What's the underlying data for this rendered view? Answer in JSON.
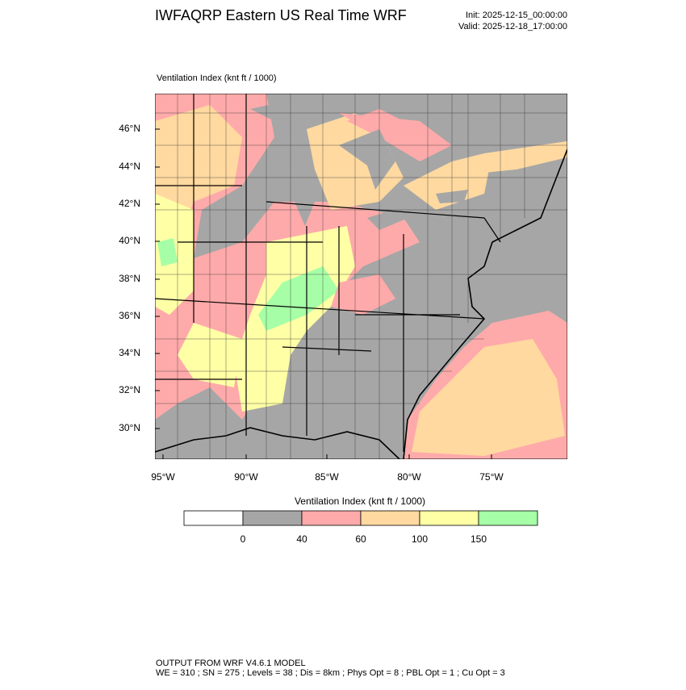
{
  "header": {
    "title": "IWFAQRP Eastern US Real Time WRF",
    "init": "Init: 2025-12-15_00:00:00",
    "valid": "Valid: 2025-12-18_17:00:00"
  },
  "map": {
    "field_label": "Ventilation Index   (knt ft / 1000)",
    "lat_labels": [
      "46°N",
      "44°N",
      "42°N",
      "40°N",
      "38°N",
      "36°N",
      "34°N",
      "32°N",
      "30°N"
    ],
    "lon_labels": [
      "95°W",
      "90°W",
      "85°W",
      "80°W",
      "75°W"
    ]
  },
  "legend": {
    "title": "Ventilation Index  (knt ft / 1000)",
    "colors": [
      "#ffffff",
      "#a6a6a6",
      "#ffaaaa",
      "#ffd9a0",
      "#ffffa6",
      "#a6ffa6"
    ],
    "levels": [
      0,
      40,
      60,
      100,
      150
    ]
  },
  "footer": {
    "line1": "OUTPUT FROM WRF V4.6.1 MODEL",
    "line2": "WE = 310 ; SN = 275 ; Levels = 38 ; Dis = 8km ; Phys Opt = 8 ; PBL Opt = 1 ; Cu Opt = 3"
  }
}
